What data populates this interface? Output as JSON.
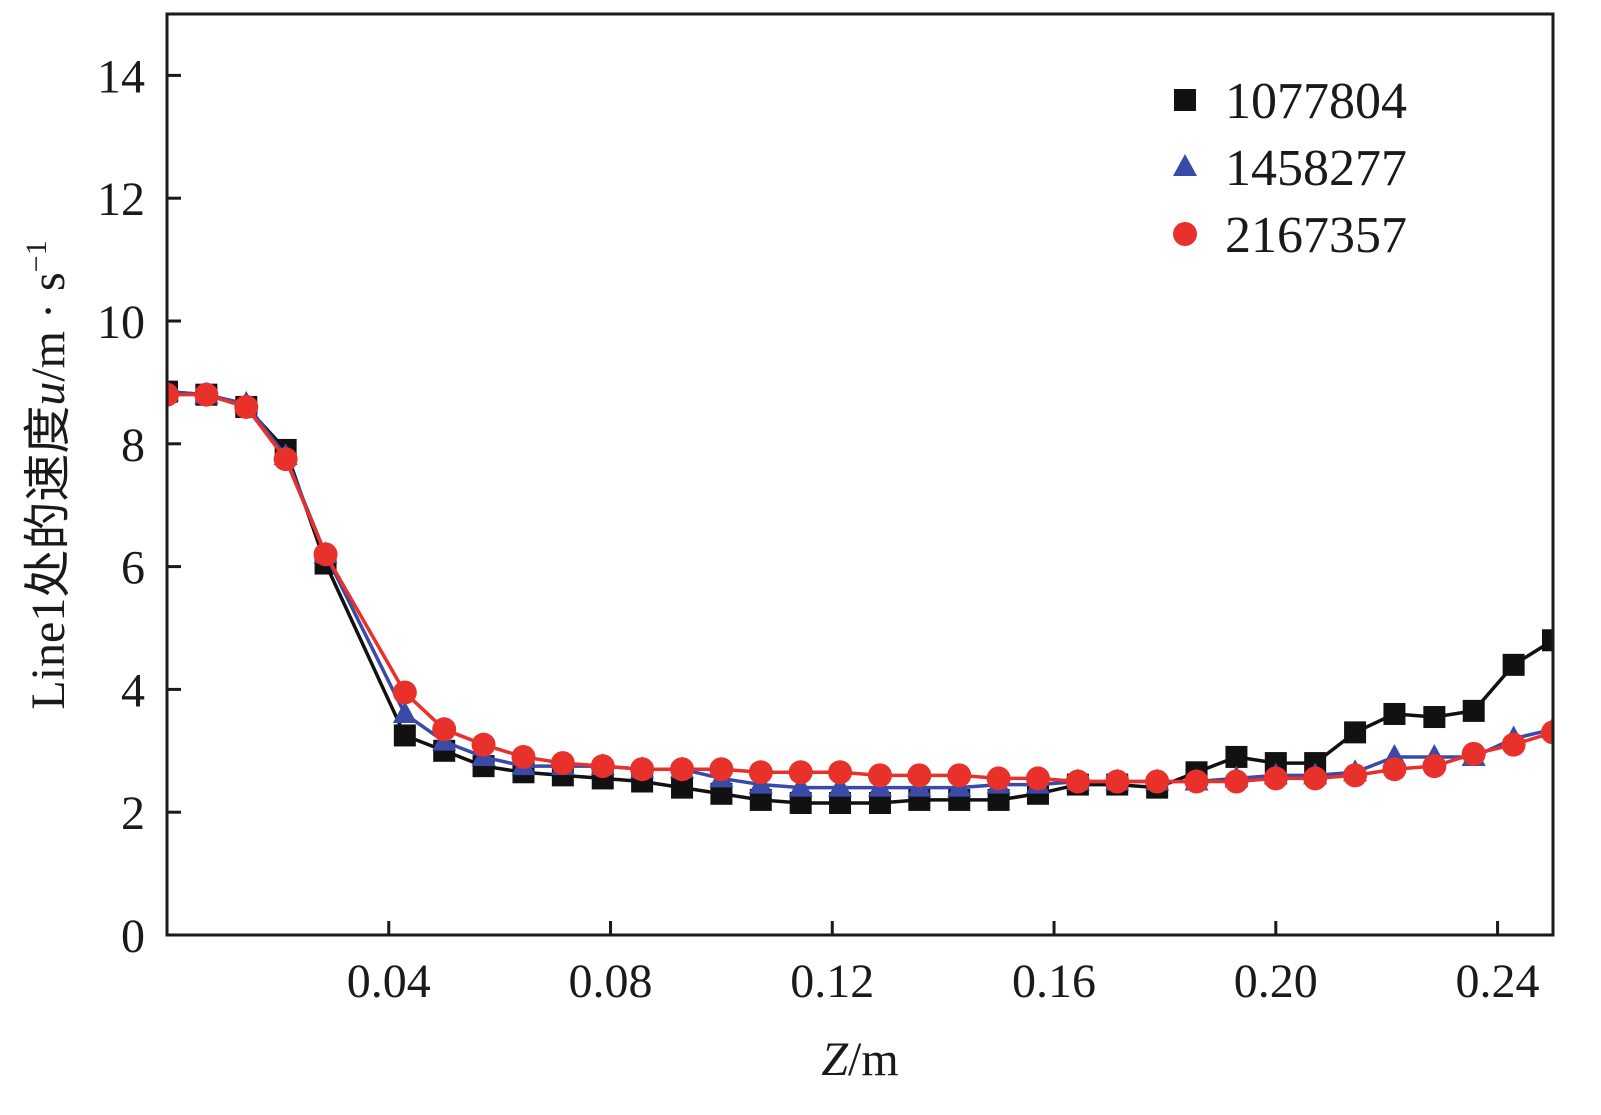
{
  "chart_data": {
    "type": "line",
    "title": "",
    "xlabel_italic": "Z",
    "xlabel_rest": "/m",
    "ylabel_prefix": "Line1处的速度",
    "ylabel_var": "u",
    "ylabel_unit": "/m · s",
    "ylabel_exp": "−1",
    "xlim": [
      0,
      0.25
    ],
    "ylim": [
      0,
      15
    ],
    "xticks": [
      0.04,
      0.08,
      0.12,
      0.16,
      0.2,
      0.24
    ],
    "xtick_labels": [
      "0.04",
      "0.08",
      "0.12",
      "0.16",
      "0.20",
      "0.24"
    ],
    "yticks": [
      0,
      2,
      4,
      6,
      8,
      10,
      12,
      14
    ],
    "ytick_labels": [
      "0",
      "2",
      "4",
      "6",
      "8",
      "10",
      "12",
      "14"
    ],
    "grid": false,
    "legend_position": "top-right",
    "x": [
      0,
      0.0071,
      0.0143,
      0.0214,
      0.0286,
      0.0429,
      0.05,
      0.0571,
      0.0643,
      0.0714,
      0.0786,
      0.0857,
      0.0929,
      0.1,
      0.1071,
      0.1143,
      0.1214,
      0.1286,
      0.1357,
      0.1429,
      0.15,
      0.1571,
      0.1643,
      0.1714,
      0.1786,
      0.1857,
      0.1929,
      0.2,
      0.2071,
      0.2143,
      0.2214,
      0.2286,
      0.2357,
      0.2429,
      0.25
    ],
    "series": [
      {
        "name": "1077804",
        "marker": "square",
        "color": "#111111",
        "values": [
          8.85,
          8.8,
          8.6,
          7.9,
          6.05,
          3.25,
          3.0,
          2.75,
          2.65,
          2.6,
          2.55,
          2.5,
          2.4,
          2.3,
          2.2,
          2.15,
          2.15,
          2.15,
          2.2,
          2.2,
          2.2,
          2.3,
          2.45,
          2.45,
          2.4,
          2.65,
          2.9,
          2.8,
          2.8,
          3.3,
          3.6,
          3.55,
          3.65,
          4.4,
          4.8
        ]
      },
      {
        "name": "1458277",
        "marker": "triangle",
        "color": "#3a4aa8",
        "values": [
          8.85,
          8.8,
          8.65,
          7.8,
          6.2,
          3.6,
          3.15,
          2.9,
          2.75,
          2.75,
          2.75,
          2.7,
          2.7,
          2.55,
          2.45,
          2.4,
          2.4,
          2.4,
          2.4,
          2.4,
          2.45,
          2.45,
          2.5,
          2.5,
          2.5,
          2.5,
          2.55,
          2.6,
          2.6,
          2.65,
          2.9,
          2.9,
          2.9,
          3.2,
          3.35
        ]
      },
      {
        "name": "2167357",
        "marker": "circle",
        "color": "#e8312a",
        "values": [
          8.8,
          8.8,
          8.6,
          7.75,
          6.2,
          3.95,
          3.35,
          3.1,
          2.9,
          2.8,
          2.75,
          2.7,
          2.7,
          2.7,
          2.65,
          2.65,
          2.65,
          2.6,
          2.6,
          2.6,
          2.55,
          2.55,
          2.5,
          2.5,
          2.5,
          2.5,
          2.5,
          2.55,
          2.55,
          2.6,
          2.7,
          2.75,
          2.95,
          3.1,
          3.3
        ]
      }
    ]
  }
}
